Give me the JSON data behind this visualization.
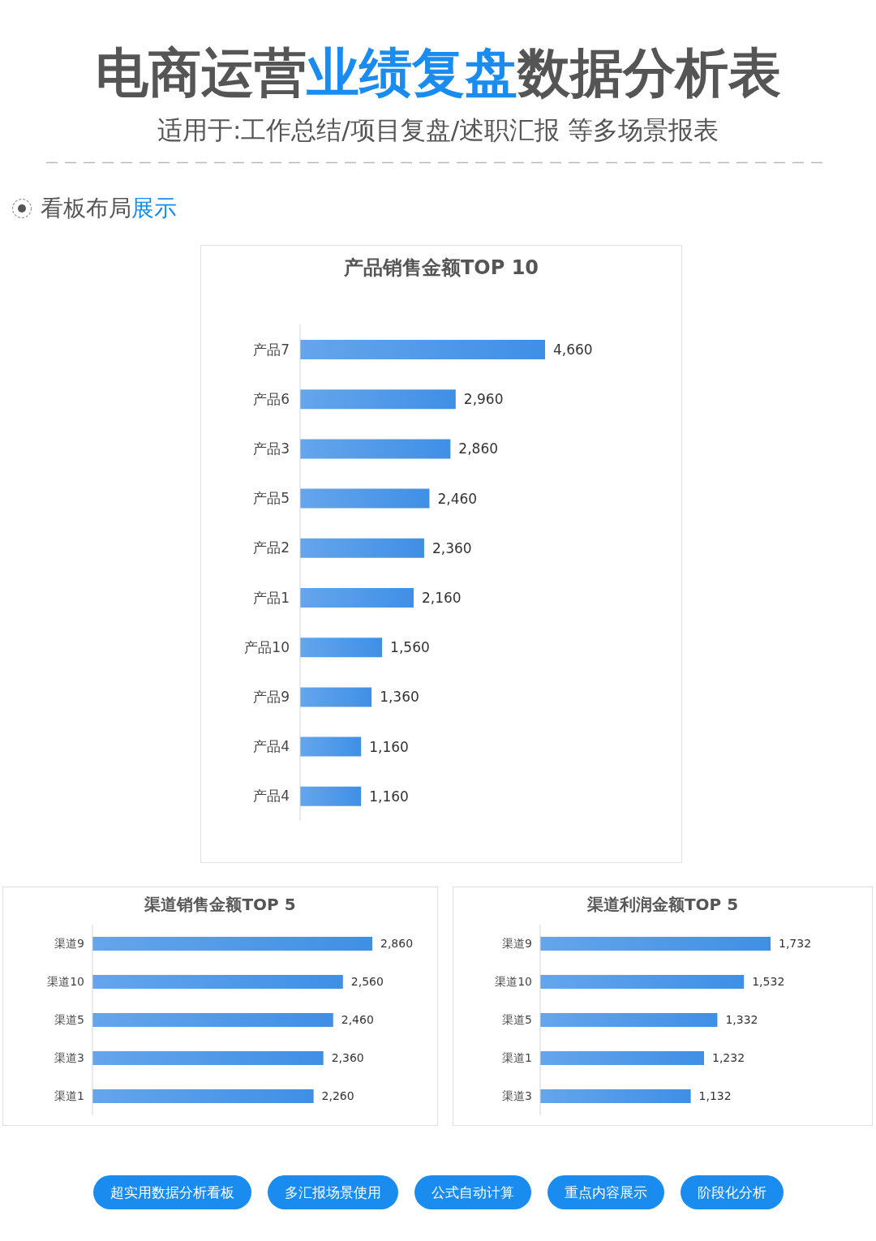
{
  "chart_data": [
    {
      "type": "other",
      "title": "电商运营业绩复盘数据分析表",
      "subtitle": "适用于:工作总结/项目复盘/述职汇报 等多场景报表",
      "annotations": [
        "看板布局展示"
      ],
      "color": "#1a8cf0"
    },
    {
      "type": "bar",
      "orientation": "horizontal",
      "title": "产品销售金额TOP 10",
      "categories": [
        "产品7",
        "产品6",
        "产品3",
        "产品5",
        "产品2",
        "产品1",
        "产品10",
        "产品9",
        "产品4",
        "产品4"
      ],
      "values": [
        4660,
        2960,
        2860,
        2460,
        2360,
        2160,
        1560,
        1360,
        1160,
        1160
      ],
      "value_labels": [
        "4,660",
        "2,960",
        "2,860",
        "2,460",
        "2,360",
        "2,160",
        "1,560",
        "1,360",
        "1,160",
        "1,160"
      ],
      "color": "#3f8fe6",
      "tick_labels": "y"
    },
    {
      "type": "bar",
      "orientation": "horizontal",
      "title": "渠道销售金额TOP 5",
      "categories": [
        "渠道9",
        "渠道10",
        "渠道5",
        "渠道3",
        "渠道1"
      ],
      "values": [
        2860,
        2560,
        2460,
        2360,
        2260
      ],
      "value_labels": [
        "2,860",
        "2,560",
        "2,460",
        "2,360",
        "2,260"
      ],
      "color": "#3f8fe6",
      "tick_labels": "y"
    },
    {
      "type": "bar",
      "orientation": "horizontal",
      "title": "渠道利润金额TOP 5",
      "categories": [
        "渠道9",
        "渠道10",
        "渠道5",
        "渠道1",
        "渠道3"
      ],
      "values": [
        1732,
        1532,
        1332,
        1232,
        1132
      ],
      "value_labels": [
        "1,732",
        "1,532",
        "1,332",
        "1,232",
        "1,132"
      ],
      "color": "#3f8fe6",
      "tick_labels": "y"
    },
    {
      "type": "other",
      "annotations": [
        "超实用数据分析看板",
        "多汇报场景使用",
        "公式自动计算",
        "重点内容展示",
        "阶段化分析"
      ],
      "color": "#1a8cf0"
    }
  ]
}
